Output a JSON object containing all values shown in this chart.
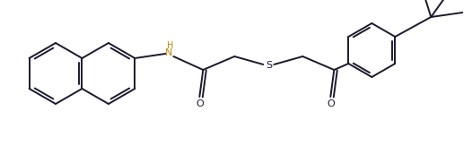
{
  "background_color": "#ffffff",
  "line_color": "#1a1a2e",
  "nh_color": "#b8860b",
  "line_width": 1.4,
  "figsize": [
    5.26,
    1.82
  ],
  "dpi": 100,
  "xlim": [
    0,
    526
  ],
  "ylim": [
    0,
    182
  ]
}
